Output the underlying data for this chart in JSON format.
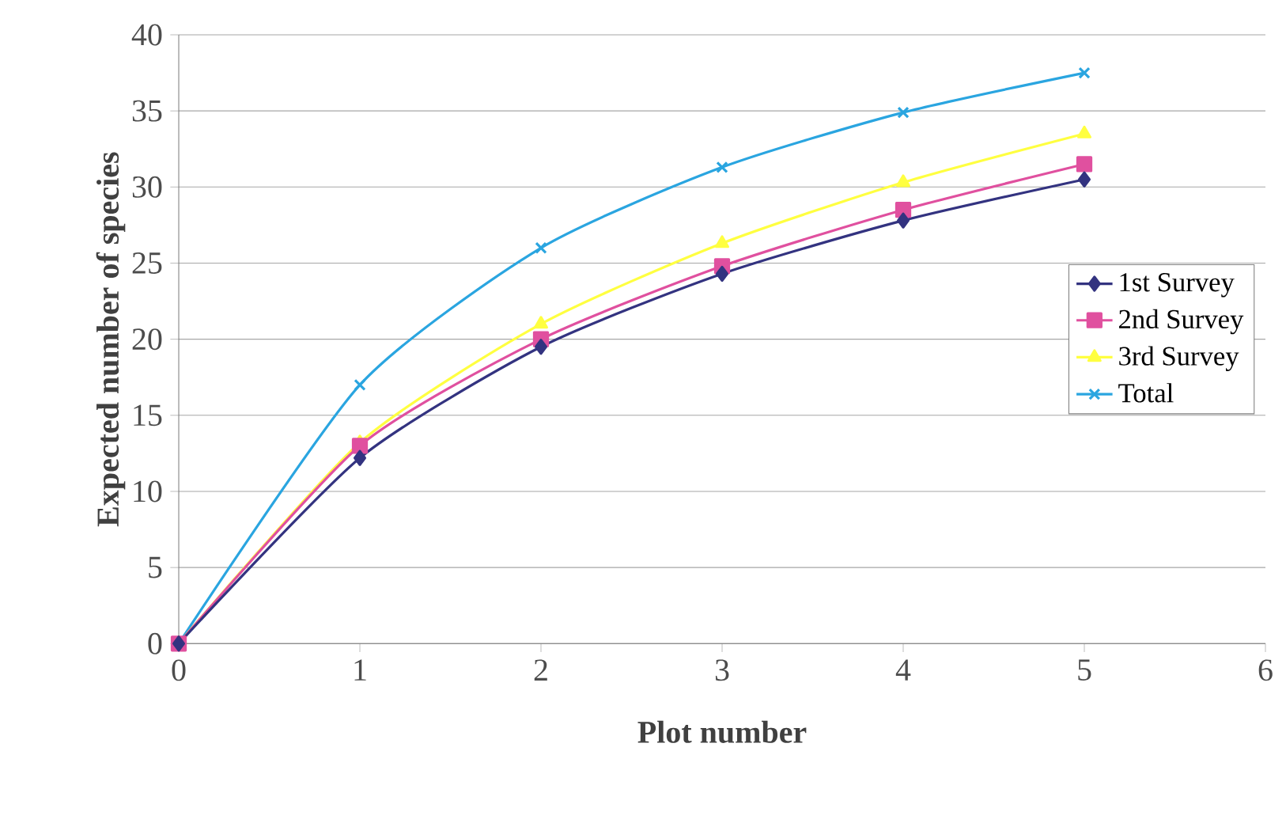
{
  "chart_data": {
    "type": "line",
    "xlabel": "Plot number",
    "ylabel": "Expected number of species",
    "x": [
      0,
      1,
      2,
      3,
      4,
      5
    ],
    "series": [
      {
        "name": "1st Survey",
        "color": "#333380",
        "marker": "diamond",
        "values": [
          0,
          12.2,
          19.5,
          24.3,
          27.8,
          30.5
        ]
      },
      {
        "name": "2nd Survey",
        "color": "#e0509f",
        "marker": "square",
        "values": [
          0,
          13,
          20,
          24.8,
          28.5,
          31.5
        ]
      },
      {
        "name": "3rd Survey",
        "color": "#ffff40",
        "marker": "triangle",
        "values": [
          0,
          13.2,
          21,
          26.3,
          30.3,
          33.5
        ]
      },
      {
        "name": "Total",
        "color": "#2aa5e0",
        "marker": "cross",
        "values": [
          0,
          17,
          26,
          31.3,
          34.9,
          37.5
        ]
      }
    ],
    "xlim": [
      0,
      6
    ],
    "xticks": [
      0,
      1,
      2,
      3,
      4,
      5,
      6
    ],
    "ylim": [
      0,
      40
    ],
    "yticks": [
      0,
      5,
      10,
      15,
      20,
      25,
      30,
      35,
      40
    ],
    "grid": "y",
    "legend": "right",
    "line_style": "solid"
  }
}
